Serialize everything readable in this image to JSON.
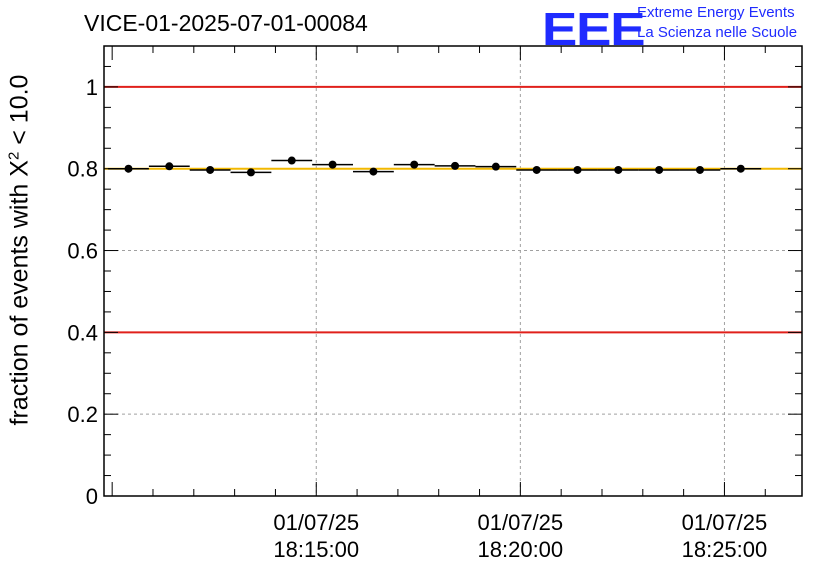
{
  "header": {
    "title": "VICE-01-2025-07-01-00084",
    "logo_letters": "EEE",
    "logo_line1": "Extreme Energy Events",
    "logo_line2": "La Scienza nelle Scuole"
  },
  "chart_data": {
    "type": "scatter",
    "title": "VICE-01-2025-07-01-00084",
    "xlabel": "",
    "ylabel_prefix": "fraction of events with ",
    "ylabel_symbol": "X",
    "ylabel_power": "2",
    "ylabel_suffix": " < 10.0",
    "x_unit": "minutes after 18:10:00",
    "xlim": [
      -0.2,
      16.9
    ],
    "ylim": [
      0,
      1.1
    ],
    "yticks": [
      0,
      0.2,
      0.4,
      0.6,
      0.8,
      1
    ],
    "ytick_labels": [
      "0",
      "0.2",
      "0.4",
      "0.6",
      "0.8",
      "1"
    ],
    "xticks": [
      {
        "x": 5,
        "date": "01/07/25",
        "time": "18:15:00"
      },
      {
        "x": 10,
        "date": "01/07/25",
        "time": "18:20:00"
      },
      {
        "x": 15,
        "date": "01/07/25",
        "time": "18:25:00"
      }
    ],
    "grid": true,
    "reference_lines": [
      {
        "y": 1.0,
        "color": "#e0201b"
      },
      {
        "y": 0.4,
        "color": "#e0201b"
      },
      {
        "y": 0.8,
        "color": "#f2b800"
      }
    ],
    "series": [
      {
        "name": "fraction",
        "x": [
          0.4,
          1.4,
          2.4,
          3.4,
          4.4,
          5.4,
          6.4,
          7.4,
          8.4,
          9.4,
          10.4,
          11.4,
          12.4,
          13.4,
          14.4,
          15.4
        ],
        "x_err": [
          0.5,
          0.5,
          0.5,
          0.5,
          0.5,
          0.5,
          0.5,
          0.5,
          0.5,
          0.5,
          0.5,
          0.5,
          0.5,
          0.5,
          0.5,
          0.5
        ],
        "y": [
          0.8,
          0.806,
          0.797,
          0.791,
          0.82,
          0.81,
          0.793,
          0.81,
          0.807,
          0.805,
          0.797,
          0.797,
          0.797,
          0.797,
          0.797,
          0.8
        ]
      }
    ]
  }
}
